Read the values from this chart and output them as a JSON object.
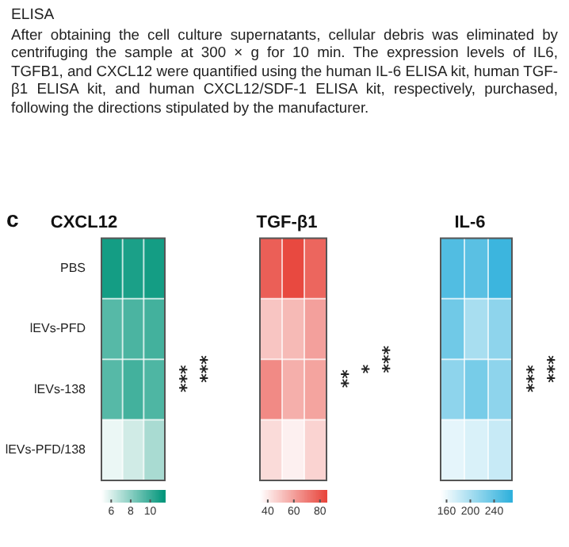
{
  "chart_data": [
    {
      "type": "other",
      "title": "ELISA",
      "annotations": [
        "After obtaining the cell culture supernatants, cellular debris was eliminated by centrifuging the sample at 300 × g for 10 min. The expression levels of IL6, TGFB1, and CXCL12 were quantified using the human IL-6 ELISA kit, human TGF-β1 ELISA kit, and human CXCL12/SDF-1 ELISA kit, respectively, purchased, following the directions stipulated by the manufacturer."
      ]
    },
    {
      "type": "heatmap",
      "title": "CXCL12",
      "categories": [
        null,
        null,
        null
      ],
      "y_categories": [
        "PBS",
        "lEVs-PFD",
        "lEVs-138",
        "lEVs-PFD/138"
      ],
      "cells": [
        [
          11,
          10.8,
          11
        ],
        [
          9.3,
          9.6,
          9.8
        ],
        [
          9.3,
          9.8,
          9.5
        ],
        [
          5.5,
          6.2,
          7.2
        ]
      ],
      "color": "#00957a",
      "clim": [
        5,
        11.5
      ],
      "cticks": [
        6,
        8,
        10
      ],
      "tick_labels": "y",
      "annotations": [
        "c",
        "***",
        "***"
      ]
    },
    {
      "type": "heatmap",
      "title": "TGF-β1",
      "categories": [
        null,
        null,
        null
      ],
      "y_categories": [
        null,
        null,
        null,
        null
      ],
      "cells": [
        [
          78,
          84,
          76
        ],
        [
          50,
          53,
          60
        ],
        [
          66,
          56,
          59
        ],
        [
          44,
          38,
          46
        ]
      ],
      "color": "#e8453c",
      "clim": [
        34,
        85
      ],
      "cticks": [
        40,
        60,
        80
      ],
      "tick_labels": false,
      "annotations": [
        "**",
        "*",
        "***"
      ]
    },
    {
      "type": "heatmap",
      "title": "IL-6",
      "categories": [
        null,
        null,
        null
      ],
      "y_categories": [
        null,
        null,
        null,
        null
      ],
      "cells": [
        [
          250,
          245,
          262
        ],
        [
          232,
          200,
          215
        ],
        [
          215,
          228,
          215
        ],
        [
          165,
          172,
          182
        ]
      ],
      "color": "#2eb0dc",
      "clim": [
        150,
        270
      ],
      "cticks": [
        160,
        200,
        240
      ],
      "tick_labels": false,
      "annotations": [
        "***",
        "***"
      ]
    }
  ]
}
